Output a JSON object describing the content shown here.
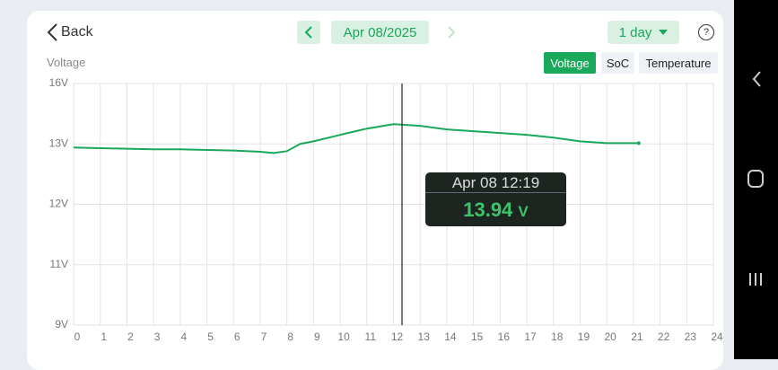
{
  "ui": {
    "back": "Back",
    "date": "Apr 08/2025",
    "range": "1 day",
    "help": "?",
    "tabs": [
      "Voltage",
      "SoC",
      "Temperature"
    ],
    "tooltip": {
      "time": "Apr 08 12:19",
      "value": "13.94",
      "unit": "V"
    }
  },
  "chart_data": {
    "type": "line",
    "y_label": "Voltage",
    "x": [
      0,
      1,
      2,
      3,
      4,
      5,
      6,
      7,
      7.5,
      8,
      8.5,
      9,
      10,
      11,
      12,
      13,
      14,
      15,
      16,
      17,
      18,
      19,
      20,
      21.2
    ],
    "series": [
      {
        "color": "#1aa85a",
        "values": [
          12.94,
          12.93,
          12.92,
          12.91,
          12.91,
          12.9,
          12.89,
          12.87,
          12.85,
          12.88,
          13.0,
          13.13,
          13.45,
          13.76,
          13.98,
          13.9,
          13.72,
          13.63,
          13.54,
          13.45,
          13.31,
          13.13,
          13.04,
          13.04
        ]
      }
    ],
    "xlim": [
      0,
      24
    ],
    "xticks": [
      0,
      1,
      2,
      3,
      4,
      5,
      6,
      7,
      8,
      9,
      10,
      11,
      12,
      13,
      14,
      15,
      16,
      17,
      18,
      19,
      20,
      21,
      22,
      23,
      24
    ],
    "ylim": [
      9,
      16
    ],
    "yticks": [
      {
        "value": 9,
        "label": "9V"
      },
      {
        "value": 11,
        "label": "11V"
      },
      {
        "value": 12,
        "label": "12V"
      },
      {
        "value": 13,
        "label": "13V"
      },
      {
        "value": 16,
        "label": "16V"
      }
    ],
    "grid": true,
    "cursor_x": 12.32
  }
}
